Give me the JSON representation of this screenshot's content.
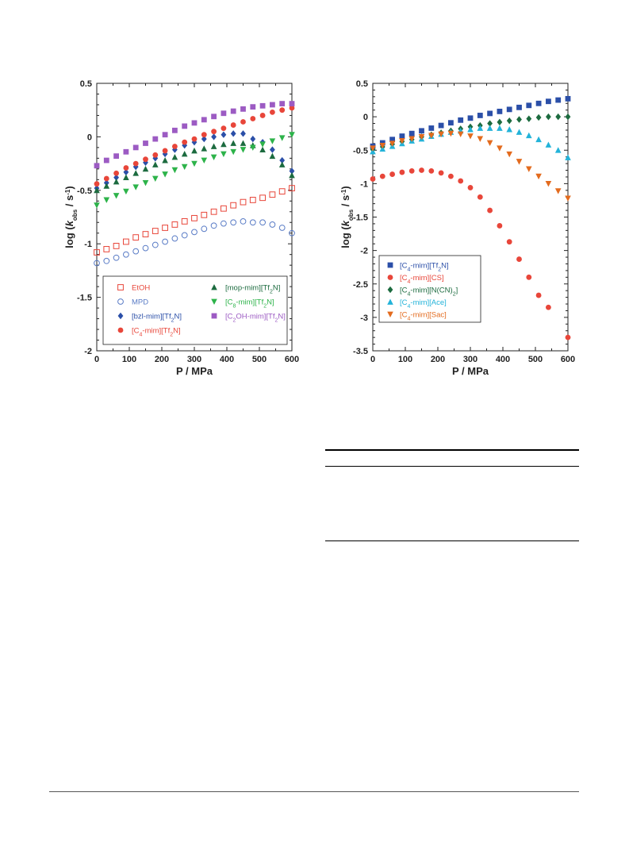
{
  "chart_data": [
    {
      "type": "scatter",
      "xlabel": "P / MPa",
      "ylabel": {
        "main": "log (",
        "k": "k",
        "sub": "obs",
        "unit": " / s",
        "sup": "-1",
        "close": ")"
      },
      "xlim": [
        0,
        600
      ],
      "ylim": [
        -2,
        0.5
      ],
      "xticks": [
        0,
        100,
        200,
        300,
        400,
        500,
        600
      ],
      "yticks": [
        -2,
        -1.5,
        -1,
        -0.5,
        0,
        0.5
      ],
      "x": [
        0,
        30,
        60,
        90,
        120,
        150,
        180,
        210,
        240,
        270,
        300,
        330,
        360,
        390,
        420,
        450,
        480,
        510,
        540,
        570,
        600
      ],
      "legend_position": "bottom",
      "series": [
        {
          "name": "EtOH",
          "label": {
            "pre": "EtOH"
          },
          "marker": "square-open",
          "color": "#e8463a",
          "values": [
            -1.08,
            -1.05,
            -1.02,
            -0.98,
            -0.94,
            -0.91,
            -0.88,
            -0.85,
            -0.82,
            -0.79,
            -0.76,
            -0.73,
            -0.7,
            -0.67,
            -0.64,
            -0.61,
            -0.59,
            -0.57,
            -0.54,
            -0.51,
            -0.48
          ]
        },
        {
          "name": "MPD",
          "label": {
            "pre": "MPD"
          },
          "marker": "circle-open",
          "color": "#5a7cc6",
          "values": [
            -1.18,
            -1.16,
            -1.13,
            -1.1,
            -1.07,
            -1.04,
            -1.01,
            -0.98,
            -0.95,
            -0.92,
            -0.89,
            -0.86,
            -0.83,
            -0.81,
            -0.8,
            -0.79,
            -0.8,
            -0.8,
            -0.82,
            -0.85,
            -0.9
          ]
        },
        {
          "name": "[bzl-mim][Tf2N]",
          "label": {
            "pre": "[bzl-mim][Tf",
            "sub": "2",
            "post": "N]"
          },
          "marker": "diamond",
          "color": "#2b4fa8",
          "values": [
            -0.48,
            -0.43,
            -0.38,
            -0.33,
            -0.28,
            -0.24,
            -0.2,
            -0.16,
            -0.12,
            -0.08,
            -0.05,
            -0.02,
            0.0,
            0.02,
            0.03,
            0.03,
            -0.02,
            -0.05,
            -0.12,
            -0.22,
            -0.32
          ]
        },
        {
          "name": "[C4-mim][Tf2N]",
          "label": {
            "pre": "[C",
            "sub": "4",
            "post": "-mim][Tf",
            "sub2": "2",
            "post2": "N]"
          },
          "marker": "circle",
          "color": "#e8463a",
          "values": [
            -0.44,
            -0.39,
            -0.34,
            -0.29,
            -0.25,
            -0.21,
            -0.17,
            -0.13,
            -0.09,
            -0.05,
            -0.02,
            0.02,
            0.05,
            0.08,
            0.11,
            0.14,
            0.17,
            0.2,
            0.23,
            0.25,
            0.27
          ]
        },
        {
          "name": "[mop-mim][Tf2N]",
          "label": {
            "pre": "[mop-mim][Tf",
            "sub": "2",
            "post": "N]"
          },
          "marker": "triangle-up",
          "color": "#1c6b3f",
          "values": [
            -0.5,
            -0.46,
            -0.42,
            -0.38,
            -0.34,
            -0.3,
            -0.26,
            -0.22,
            -0.19,
            -0.16,
            -0.13,
            -0.11,
            -0.09,
            -0.07,
            -0.06,
            -0.06,
            -0.08,
            -0.12,
            -0.18,
            -0.26,
            -0.36
          ]
        },
        {
          "name": "[C8-mim][Tf2N]",
          "label": {
            "pre": "[C",
            "sub": "8",
            "post": "-mim][Tf",
            "sub2": "2",
            "post2": "N]"
          },
          "marker": "triangle-down",
          "color": "#2db34a",
          "values": [
            -0.64,
            -0.59,
            -0.55,
            -0.51,
            -0.47,
            -0.43,
            -0.39,
            -0.35,
            -0.31,
            -0.28,
            -0.25,
            -0.22,
            -0.19,
            -0.16,
            -0.14,
            -0.12,
            -0.1,
            -0.07,
            -0.04,
            -0.01,
            0.02
          ]
        },
        {
          "name": "[C2OH-mim][Tf2N]",
          "label": {
            "pre": "[C",
            "sub": "2",
            "post": "OH-mim][Tf",
            "sub2": "2",
            "post2": "N]"
          },
          "marker": "square",
          "color": "#9c5bc3",
          "values": [
            -0.27,
            -0.22,
            -0.18,
            -0.14,
            -0.1,
            -0.06,
            -0.02,
            0.02,
            0.06,
            0.1,
            0.13,
            0.16,
            0.19,
            0.22,
            0.24,
            0.26,
            0.28,
            0.29,
            0.3,
            0.31,
            0.31
          ]
        }
      ]
    },
    {
      "type": "scatter",
      "xlabel": "P / MPa",
      "ylabel": {
        "main": "log (",
        "k": "k",
        "sub": "obs",
        "unit": " / s",
        "sup": "-1",
        "close": ")"
      },
      "xlim": [
        0,
        600
      ],
      "ylim": [
        -3.5,
        0.5
      ],
      "xticks": [
        0,
        100,
        200,
        300,
        400,
        500,
        600
      ],
      "yticks": [
        -3.5,
        -3,
        -2.5,
        -2,
        -1.5,
        -1,
        -0.5,
        0,
        0.5
      ],
      "legend_position": "bottom-left",
      "series": [
        {
          "name": "[C4-mim][Tf2N]",
          "label": {
            "pre": "[C",
            "sub": "4",
            "post": "-mim][Tf",
            "sub2": "2",
            "post2": "N]"
          },
          "marker": "square",
          "color": "#2b4fa8",
          "x": [
            0,
            30,
            60,
            90,
            120,
            150,
            180,
            210,
            240,
            270,
            300,
            330,
            360,
            390,
            420,
            450,
            480,
            510,
            540,
            570,
            600
          ],
          "values": [
            -0.44,
            -0.39,
            -0.34,
            -0.29,
            -0.25,
            -0.21,
            -0.17,
            -0.13,
            -0.09,
            -0.05,
            -0.02,
            0.02,
            0.05,
            0.08,
            0.11,
            0.14,
            0.17,
            0.2,
            0.23,
            0.25,
            0.27
          ]
        },
        {
          "name": "[C4-mim][CS]",
          "label": {
            "pre": "[C",
            "sub": "4",
            "post": "-mim][CS]"
          },
          "marker": "circle",
          "color": "#e8463a",
          "x": [
            0,
            30,
            60,
            90,
            120,
            150,
            180,
            210,
            240,
            270,
            300,
            330,
            360,
            390,
            420,
            450,
            480,
            510,
            540,
            600
          ],
          "values": [
            -0.93,
            -0.89,
            -0.86,
            -0.83,
            -0.81,
            -0.8,
            -0.81,
            -0.84,
            -0.89,
            -0.96,
            -1.06,
            -1.2,
            -1.4,
            -1.63,
            -1.87,
            -2.13,
            -2.4,
            -2.67,
            -2.85,
            -3.3
          ]
        },
        {
          "name": "[C4-mim][N(CN)2]",
          "label": {
            "pre": "[C",
            "sub": "4",
            "post": "-mim][N(CN)",
            "sub2": "2",
            "post2": "]"
          },
          "marker": "diamond",
          "color": "#1c6b3f",
          "x": [
            0,
            30,
            60,
            90,
            120,
            150,
            180,
            210,
            240,
            270,
            300,
            330,
            360,
            390,
            420,
            450,
            480,
            510,
            540,
            570,
            600
          ],
          "values": [
            -0.49,
            -0.45,
            -0.41,
            -0.37,
            -0.34,
            -0.3,
            -0.27,
            -0.24,
            -0.21,
            -0.18,
            -0.15,
            -0.13,
            -0.1,
            -0.08,
            -0.06,
            -0.04,
            -0.03,
            -0.01,
            0.0,
            0.0,
            0.0
          ]
        },
        {
          "name": "[C4-mim][Ace]",
          "label": {
            "pre": "[C",
            "sub": "4",
            "post": "-mim][Ace]"
          },
          "marker": "triangle-up",
          "color": "#23b3d9",
          "x": [
            0,
            30,
            60,
            90,
            120,
            150,
            180,
            210,
            240,
            270,
            300,
            330,
            360,
            390,
            420,
            450,
            480,
            510,
            540,
            570,
            600
          ],
          "values": [
            -0.52,
            -0.48,
            -0.44,
            -0.4,
            -0.36,
            -0.33,
            -0.29,
            -0.26,
            -0.23,
            -0.21,
            -0.19,
            -0.17,
            -0.17,
            -0.17,
            -0.19,
            -0.23,
            -0.28,
            -0.34,
            -0.42,
            -0.5,
            -0.61
          ]
        },
        {
          "name": "[C4-mim][Sac]",
          "label": {
            "pre": "[C",
            "sub": "4",
            "post": "-mim][Sac]"
          },
          "marker": "triangle-down",
          "color": "#e36b1e",
          "x": [
            0,
            30,
            60,
            90,
            120,
            150,
            180,
            210,
            240,
            270,
            300,
            330,
            360,
            390,
            420,
            450,
            480,
            510,
            540,
            570,
            600
          ],
          "values": [
            -0.47,
            -0.43,
            -0.4,
            -0.36,
            -0.33,
            -0.3,
            -0.28,
            -0.26,
            -0.25,
            -0.26,
            -0.29,
            -0.33,
            -0.39,
            -0.47,
            -0.56,
            -0.67,
            -0.78,
            -0.89,
            -1.0,
            -1.11,
            -1.22
          ]
        }
      ]
    }
  ]
}
